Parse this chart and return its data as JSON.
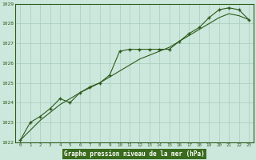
{
  "title": "Graphe pression niveau de la mer (hPa)",
  "x_hours": [
    0,
    1,
    2,
    3,
    4,
    5,
    6,
    7,
    8,
    9,
    10,
    11,
    12,
    13,
    14,
    15,
    16,
    17,
    18,
    19,
    20,
    21,
    22,
    23
  ],
  "pressure_smooth": [
    1022.1,
    1022.6,
    1023.1,
    1023.5,
    1023.9,
    1024.2,
    1024.5,
    1024.75,
    1025.0,
    1025.3,
    1025.6,
    1025.9,
    1026.2,
    1026.4,
    1026.6,
    1026.8,
    1027.1,
    1027.4,
    1027.7,
    1028.0,
    1028.3,
    1028.5,
    1028.4,
    1028.2
  ],
  "pressure_marked": [
    1022.1,
    1023.0,
    1023.3,
    1023.7,
    1024.2,
    1024.0,
    1024.5,
    1024.8,
    1025.0,
    1025.4,
    1026.6,
    1026.7,
    1026.7,
    1026.7,
    1026.7,
    1026.7,
    1027.1,
    1027.5,
    1027.8,
    1028.3,
    1028.7,
    1028.8,
    1028.7,
    1028.2
  ],
  "ylim": [
    1022.0,
    1029.0
  ],
  "yticks": [
    1022,
    1023,
    1024,
    1025,
    1026,
    1027,
    1028,
    1029
  ],
  "xlim": [
    -0.5,
    23.5
  ],
  "xticks": [
    0,
    1,
    2,
    3,
    4,
    5,
    6,
    7,
    8,
    9,
    10,
    11,
    12,
    13,
    14,
    15,
    16,
    17,
    18,
    19,
    20,
    21,
    22,
    23
  ],
  "line_color": "#2d5a1b",
  "marker_color": "#2d5a1b",
  "bg_color": "#cce8dc",
  "grid_color": "#a8ccbc",
  "title_color": "white",
  "title_bg": "#3a6b1e",
  "axis_color": "#2d5a1b"
}
